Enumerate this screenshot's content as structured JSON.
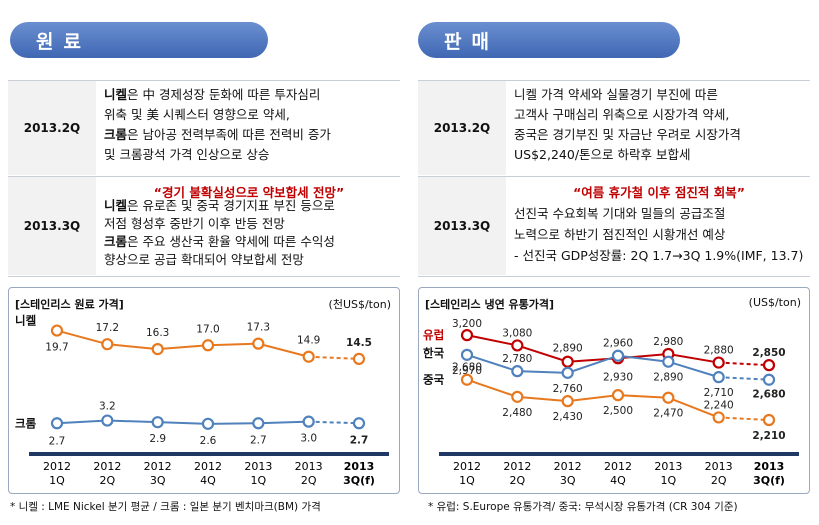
{
  "left": {
    "header": "원료",
    "rows": [
      {
        "quarter": "2013.2Q",
        "headline": "",
        "lines": [
          [
            {
              "b": "니켈",
              "t": "은 中 경제성장 둔화에 따른 투자심리"
            }
          ],
          [
            {
              "b": "",
              "t": "위축 및 美 시퀘스터 영향으로 약세,"
            }
          ],
          [
            {
              "b": "크롬",
              "t": "은 남아공 전력부족에 따른 전력비 증가"
            }
          ],
          [
            {
              "b": "",
              "t": "및 크롬광석 가격 인상으로 상승"
            }
          ]
        ]
      },
      {
        "quarter": "2013.3Q",
        "headline": "“경기 불확실성으로 약보합세 전망”",
        "lines": [
          [
            {
              "b": "니켈",
              "t": "은 유로존 및 중국 경기지표 부진 등으로"
            }
          ],
          [
            {
              "b": "",
              "t": "저점 형성후 중반기 이후 반등 전망"
            }
          ],
          [
            {
              "b": "크롬",
              "t": "은 주요 생산국 환율 약세에 따른 수익성"
            }
          ],
          [
            {
              "b": "",
              "t": "향상으로 공급 확대되어 약보합세 전망"
            }
          ]
        ]
      }
    ],
    "footnote": "* 니켈 : LME Nickel 분기 평균  /  크롬 : 일본 분기 벤치마크(BM) 가격"
  },
  "right": {
    "header": "판매",
    "rows": [
      {
        "quarter": "2013.2Q",
        "headline": "",
        "lines": [
          [
            {
              "b": "",
              "t": "니켈 가격 약세와 실물경기 부진에 따른"
            }
          ],
          [
            {
              "b": "",
              "t": "고객사 구매심리 위축으로 시장가격 약세,"
            }
          ],
          [
            {
              "b": "",
              "t": "중국은 경기부진 및 자금난 우려로 시장가격"
            }
          ],
          [
            {
              "b": "",
              "t": "US$2,240/톤으로 하락후 보합세"
            }
          ]
        ]
      },
      {
        "quarter": "2013.3Q",
        "headline": "“여름 휴가철 이후 점진적 회복”",
        "lines": [
          [
            {
              "b": "",
              "t": "선진국 수요회복 기대와 밀들의 공급조절"
            }
          ],
          [
            {
              "b": "",
              "t": "노력으로 하반기 점진적인 시황개선 예상"
            }
          ],
          [
            {
              "b": "",
              "t": "- 선진국 GDP성장률: 2Q 1.7→3Q 1.9%(IMF, 13.7)"
            }
          ]
        ]
      }
    ],
    "footnote": "* 유럽: S.Europe 유통가격/ 중국: 무석시장 유통가격 (CR 304 기준)"
  },
  "chart_data": [
    {
      "type": "line",
      "title": "[스테인리스 원료 가격]",
      "unit": "(천US$/ton)",
      "categories": [
        "2012\n1Q",
        "2012\n2Q",
        "2012\n3Q",
        "2012\n4Q",
        "2013\n1Q",
        "2013\n2Q",
        "2013\n3Q(f)"
      ],
      "forecast_from_index": 5,
      "ylim": [
        0,
        22
      ],
      "series": [
        {
          "name": "니켈",
          "color": "#e8781e",
          "values": [
            19.7,
            17.2,
            16.3,
            17.0,
            17.3,
            14.9,
            14.5
          ],
          "labels": [
            "19.7",
            "17.2",
            "16.3",
            "17.0",
            "17.3",
            "14.9",
            "14.5"
          ]
        },
        {
          "name": "크롬",
          "color": "#4f81bd",
          "values": [
            2.7,
            3.2,
            2.9,
            2.6,
            2.7,
            3.0,
            2.7
          ],
          "labels": [
            "2.7",
            "3.2",
            "2.9",
            "2.6",
            "2.7",
            "3.0",
            "2.7"
          ]
        }
      ]
    },
    {
      "type": "line",
      "title": "[스테인리스 냉연 유통가격]",
      "unit": "(US$/ton)",
      "categories": [
        "2012\n1Q",
        "2012\n2Q",
        "2012\n3Q",
        "2012\n4Q",
        "2013\n1Q",
        "2013\n2Q",
        "2013\n3Q(f)"
      ],
      "forecast_from_index": 5,
      "ylim": [
        2000,
        3400
      ],
      "series": [
        {
          "name": "유럽",
          "color": "#c00000",
          "values": [
            3200,
            3080,
            2890,
            2930,
            2980,
            2880,
            2850
          ],
          "labels": [
            "3,200",
            "3,080",
            "2,890",
            "2,930",
            "2,980",
            "2,880",
            "2,850"
          ]
        },
        {
          "name": "한국",
          "color": "#4f81bd",
          "values": [
            2970,
            2780,
            2760,
            2960,
            2890,
            2710,
            2680
          ],
          "labels": [
            "2,970",
            "2,780",
            "2,760",
            "2,960",
            "2,890",
            "2,710",
            "2,680"
          ]
        },
        {
          "name": "중국",
          "color": "#e8781e",
          "values": [
            2680,
            2480,
            2430,
            2500,
            2470,
            2240,
            2210
          ],
          "labels": [
            "2,680",
            "2,480",
            "2,430",
            "2,500",
            "2,470",
            "2,240",
            "2,210"
          ]
        }
      ]
    }
  ]
}
